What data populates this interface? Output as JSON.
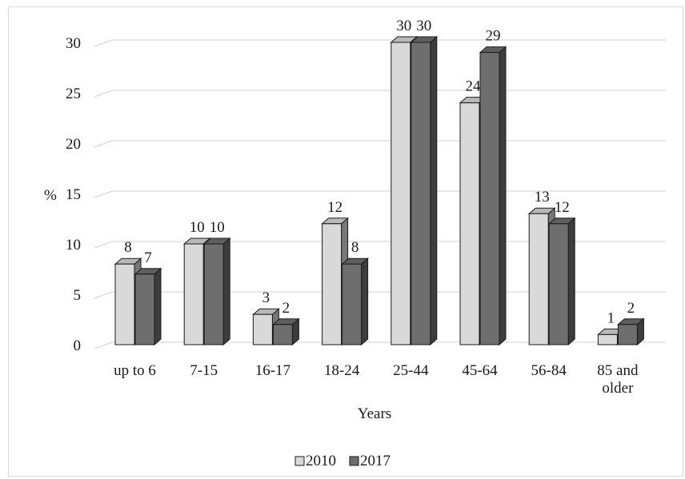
{
  "chart_data": {
    "type": "bar",
    "title": "",
    "xlabel": "Years",
    "ylabel": "%",
    "ylim": [
      0,
      30
    ],
    "yticks": [
      0,
      5,
      10,
      15,
      20,
      25,
      30
    ],
    "grid": true,
    "legend_position": "bottom",
    "categories": [
      [
        "up to 6"
      ],
      [
        "7-15"
      ],
      [
        "16-17"
      ],
      [
        "18-24"
      ],
      [
        "25-44"
      ],
      [
        "45-64"
      ],
      [
        "56-84"
      ],
      [
        "85 and",
        "older"
      ]
    ],
    "series": [
      {
        "name": "2010",
        "values": [
          8,
          10,
          3,
          12,
          30,
          24,
          13,
          1
        ],
        "color": "#d9d9d9"
      },
      {
        "name": "2017",
        "values": [
          7,
          10,
          2,
          8,
          30,
          29,
          12,
          2
        ],
        "color": "#6e6e6e"
      }
    ]
  }
}
